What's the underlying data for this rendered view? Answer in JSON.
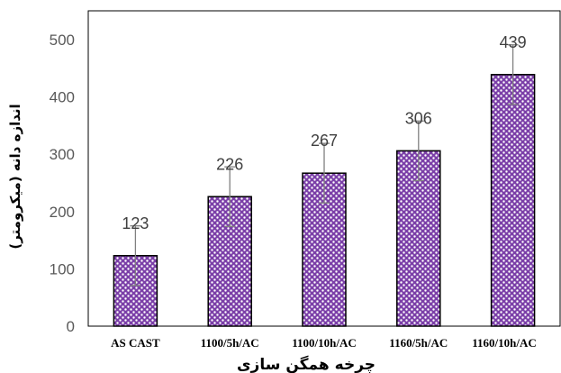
{
  "chart_data": {
    "type": "bar",
    "title": "",
    "xlabel": "چرخه همگن سازی",
    "ylabel": "اندازه دانه (میکرومتر)",
    "categories": [
      "AS CAST",
      "1100/5h/AC",
      "1100/10h/AC",
      "1160/5h/AC",
      "1160/10h/AC"
    ],
    "values": [
      123,
      226,
      267,
      306,
      439
    ],
    "data_labels": [
      "123",
      "226",
      "267",
      "306",
      "439"
    ],
    "error_bars": [
      52,
      52,
      52,
      52,
      52
    ],
    "ylim": [
      0,
      500
    ],
    "yticks": [
      0,
      100,
      200,
      300,
      400,
      500
    ],
    "ytick_labels": [
      "0",
      "100",
      "200",
      "300",
      "400",
      "500"
    ],
    "grid": false,
    "legend": "none",
    "bar_color": "#7b3fa8",
    "bar_dot_color": "#ffffff",
    "bar_edge_color": "#000000",
    "error_bar_color": "#808080"
  }
}
